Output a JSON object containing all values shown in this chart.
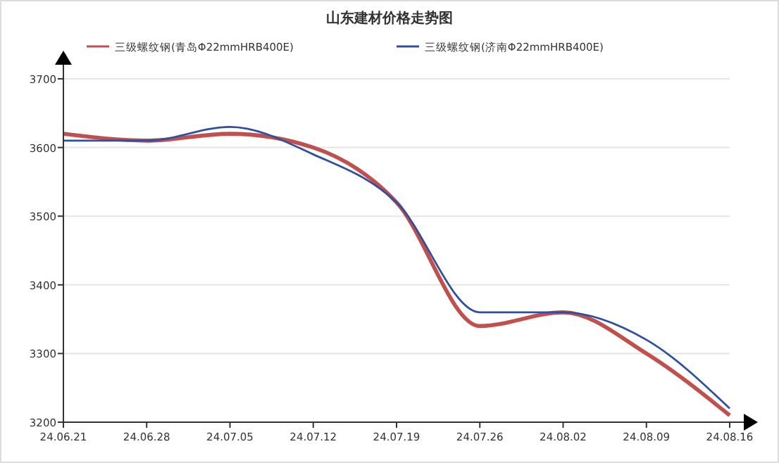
{
  "chart_data": {
    "type": "line",
    "title": "山东建材价格走势图",
    "categories": [
      "24.06.21",
      "24.06.28",
      "24.07.05",
      "24.07.12",
      "24.07.19",
      "24.07.26",
      "24.08.02",
      "24.08.09",
      "24.08.16"
    ],
    "series": [
      {
        "name": "三级螺纹钢(青岛Φ22mmHRB400E)",
        "color": "#c0504d",
        "values": [
          3620,
          3610,
          3620,
          3600,
          3520,
          3340,
          3360,
          3300,
          3210
        ]
      },
      {
        "name": "三级螺纹钢(济南Φ22mmHRB400E)",
        "color": "#2f4f9f",
        "values": [
          3610,
          3610,
          3630,
          3590,
          3520,
          3360,
          3360,
          3320,
          3220
        ]
      }
    ],
    "ylim": [
      3200,
      3700
    ],
    "yticks": [
      3200,
      3300,
      3400,
      3500,
      3600,
      3700
    ],
    "grid": "y",
    "legend": "top",
    "marker": "none",
    "line_style": "solid"
  }
}
